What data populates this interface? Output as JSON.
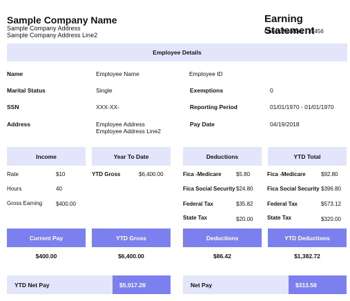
{
  "company": {
    "name": "Sample Company Name",
    "address1": "Sample Company Address",
    "address2": "Sample Company Address Line2"
  },
  "statement": {
    "title": "Earning Statement",
    "check_label": "Check Number : ",
    "check_number": "#3456"
  },
  "employee_section": {
    "title": "Employee Details",
    "name_label": "Name",
    "name_value": "Employee Name",
    "marital_label": "Marital Status",
    "marital_value": "Single",
    "ssn_label": "SSN",
    "ssn_value": "XXX-XX-",
    "address_label": "Address",
    "address_line1": "Employee Address",
    "address_line2": "Employee Address Line2",
    "id_label": "Employee ID",
    "id_value": "",
    "exemptions_label": "Exemptions",
    "exemptions_value": "0",
    "period_label": "Reporting Period",
    "period_value": "01/01/1970 - 01/01/1970",
    "paydate_label": "Pay Date",
    "paydate_value": "04/19/2018"
  },
  "income": {
    "header": "Income",
    "rows": [
      {
        "label": "Rate",
        "value": "$10"
      },
      {
        "label": "Hours",
        "value": "40"
      },
      {
        "label": "Gross Earning",
        "value": "$400.00"
      }
    ]
  },
  "ytd_date": {
    "header": "Year To Date",
    "rows": [
      {
        "label": "YTD Gross",
        "value": "$6,400.00"
      }
    ]
  },
  "deductions": {
    "header": "Deductions",
    "rows": [
      {
        "label": "Fica -Medicare",
        "value": "$5.80"
      },
      {
        "label": "Fica Social Security",
        "value": "$24.80"
      },
      {
        "label": "Federal Tax",
        "value": "$35.82"
      },
      {
        "label": "State Tax",
        "value": "$20.00"
      }
    ]
  },
  "ytd_total": {
    "header": "YTD Total",
    "rows": [
      {
        "label": "Fica -Medicare",
        "value": "$92.80"
      },
      {
        "label": "Fica Social Security",
        "value": "$396.80"
      },
      {
        "label": "Federal Tax",
        "value": "$573.12"
      },
      {
        "label": "State Tax",
        "value": "$320.00"
      }
    ]
  },
  "summary": {
    "current_pay_label": "Current Pay",
    "current_pay_value": "$400.00",
    "ytd_gross_label": "YTD Gross",
    "ytd_gross_value": "$6,400.00",
    "deductions_label": "Deductions",
    "deductions_value": "$86.42",
    "ytd_deductions_label": "YTD Deductions",
    "ytd_deductions_value": "$1,382.72"
  },
  "net": {
    "ytd_net_label": "YTD Net Pay",
    "ytd_net_value": "$5,017.28",
    "net_label": "Net Pay",
    "net_value": "$313.58"
  },
  "colors": {
    "lavender": "#e3e5fb",
    "accent": "#7c80ee"
  }
}
